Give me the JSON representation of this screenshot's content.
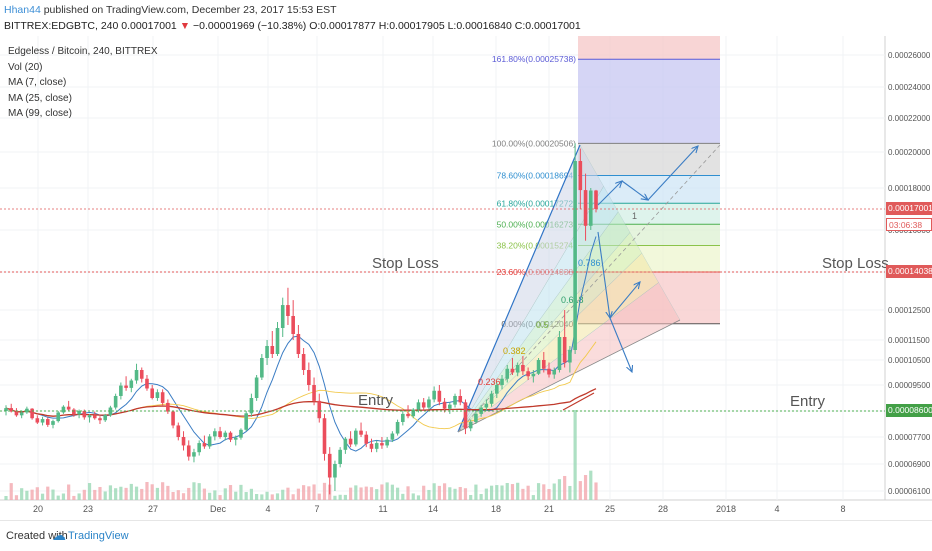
{
  "header": {
    "author": "Hhan44",
    "published_text": "published on TradingView.com, December 23, 2017 15:53 EST",
    "symbol": "BITTREX:EDGBTC, 240",
    "price": "0.00017001",
    "change_arrow": "▼",
    "change": "−0.00001969 (−10.38%)",
    "ohlc": "O:0.00017877 H:0.00017905 L:0.00016840 C:0.00017001"
  },
  "legend": {
    "title": "Edgeless / Bitcoin, 240, BITTREX",
    "vol": "Vol (20)",
    "ma7": "MA (7, close)",
    "ma25": "MA (25, close)",
    "ma99": "MA (99, close)"
  },
  "annotations": {
    "stop_loss_left": "Stop Loss",
    "stop_loss_right": "Stop Loss",
    "entry_left": "Entry",
    "entry_right": "Entry"
  },
  "price_labels": {
    "last": "0.00017001",
    "countdown": "03:06:38",
    "stop_loss": "0.00014038",
    "entry": "0.00008600"
  },
  "footer": {
    "created_with": "Created with",
    "brand": "TradingView"
  },
  "colors": {
    "up": "#53b987",
    "down": "#eb4d5c",
    "ma7": "#3b7dc4",
    "ma25": "#f2c94c",
    "ma99": "#c0392b",
    "stop_line": "#e05a5a",
    "entry_line": "#4caf50"
  },
  "chart_data": {
    "type": "candlestick",
    "symbol": "EDGBTC",
    "timeframe": "240",
    "x_tick_labels": [
      "20",
      "23",
      "27",
      "Dec",
      "4",
      "7",
      "11",
      "14",
      "18",
      "21",
      "25",
      "28",
      "2018",
      "4",
      "8"
    ],
    "y_tick_labels": [
      "0.00026000",
      "0.00024000",
      "0.00022000",
      "0.00020000",
      "0.00018000",
      "0.00016000",
      "0.00014038",
      "0.00012500",
      "0.00011500",
      "0.00010500",
      "0.00009500",
      "0.00008600",
      "0.00007700",
      "0.00006900",
      "0.00006100"
    ],
    "y_ticks": [
      0.00026,
      0.00024,
      0.00022,
      0.0002,
      0.00018,
      0.00016,
      0.00014038,
      0.000125,
      0.000115,
      0.000105,
      9.5e-05,
      8.6e-05,
      7.7e-05,
      6.9e-05,
      6.1e-05
    ],
    "fib_levels": [
      {
        "label": "161.80%(0.00025738)",
        "value": 0.00025738,
        "color": "#5b5bd6"
      },
      {
        "label": "100.00%(0.00020506)",
        "value": 0.00020506,
        "color": "#808080"
      },
      {
        "label": "78.60%(0.00018694)",
        "value": 0.00018694,
        "color": "#2f8fd0"
      },
      {
        "label": "61.80%(0.00017272)",
        "value": 0.00017272,
        "color": "#26a69a"
      },
      {
        "label": "50.00%(0.00016273)",
        "value": 0.00016273,
        "color": "#4caf50"
      },
      {
        "label": "38.20%(0.00015274)",
        "value": 0.00015274,
        "color": "#8bc34a"
      },
      {
        "label": "23.60%(0.00014038)",
        "value": 0.00014038,
        "color": "#e53935"
      },
      {
        "label": "0.00%(0.00012040)",
        "value": 0.0001204,
        "color": "#555555"
      }
    ],
    "fan_labels": [
      "0.236",
      "0.382",
      "0.5",
      "0.618",
      "0.786",
      "1"
    ],
    "horizontal_lines": [
      {
        "name": "Stop Loss",
        "value": 0.00014038
      },
      {
        "name": "Entry",
        "value": 8.6e-05
      },
      {
        "name": "Last",
        "value": 0.00017001
      }
    ],
    "candles": [
      [
        8.6e-05,
        8.8e-05,
        8.45e-05,
        8.7e-05
      ],
      [
        8.7e-05,
        8.85e-05,
        8.55e-05,
        8.58e-05
      ],
      [
        8.58e-05,
        8.7e-05,
        8.4e-05,
        8.45e-05
      ],
      [
        8.45e-05,
        8.62e-05,
        8.35e-05,
        8.55e-05
      ],
      [
        8.55e-05,
        8.75e-05,
        8.5e-05,
        8.68e-05
      ],
      [
        8.68e-05,
        8.7e-05,
        8.3e-05,
        8.35e-05
      ],
      [
        8.35e-05,
        8.45e-05,
        8.15e-05,
        8.2e-05
      ],
      [
        8.2e-05,
        8.4e-05,
        8.1e-05,
        8.32e-05
      ],
      [
        8.32e-05,
        8.38e-05,
        8.05e-05,
        8.12e-05
      ],
      [
        8.12e-05,
        8.3e-05,
        8e-05,
        8.25e-05
      ],
      [
        8.25e-05,
        8.6e-05,
        8.2e-05,
        8.55e-05
      ],
      [
        8.55e-05,
        8.8e-05,
        8.5e-05,
        8.75e-05
      ],
      [
        8.75e-05,
        8.95e-05,
        8.6e-05,
        8.65e-05
      ],
      [
        8.65e-05,
        8.7e-05,
        8.4e-05,
        8.48e-05
      ],
      [
        8.48e-05,
        8.65e-05,
        8.35e-05,
        8.6e-05
      ],
      [
        8.6e-05,
        8.65e-05,
        8.3e-05,
        8.38e-05
      ],
      [
        8.38e-05,
        8.5e-05,
        8.2e-05,
        8.45e-05
      ],
      [
        8.45e-05,
        8.58e-05,
        8.3e-05,
        8.35e-05
      ],
      [
        8.35e-05,
        8.42e-05,
        8.15e-05,
        8.28e-05
      ],
      [
        8.28e-05,
        8.5e-05,
        8.22e-05,
        8.46e-05
      ],
      [
        8.46e-05,
        8.78e-05,
        8.4e-05,
        8.72e-05
      ],
      [
        8.72e-05,
        9.2e-05,
        8.65e-05,
        9.12e-05
      ],
      [
        9.12e-05,
        9.6e-05,
        9e-05,
        9.48e-05
      ],
      [
        9.48e-05,
        9.85e-05,
        9.3e-05,
        9.4e-05
      ],
      [
        9.4e-05,
        9.75e-05,
        9.25e-05,
        9.68e-05
      ],
      [
        9.68e-05,
        0.0001035,
        9.55e-05,
        0.000101
      ],
      [
        0.000101,
        0.000102,
        9.6e-05,
        9.75e-05
      ],
      [
        9.75e-05,
        9.9e-05,
        9.3e-05,
        9.38e-05
      ],
      [
        9.38e-05,
        9.5e-05,
        9e-05,
        9.05e-05
      ],
      [
        9.05e-05,
        9.35e-05,
        8.95e-05,
        9.25e-05
      ],
      [
        9.25e-05,
        9.35e-05,
        8.8e-05,
        8.88e-05
      ],
      [
        8.88e-05,
        9e-05,
        8.5e-05,
        8.58e-05
      ],
      [
        8.58e-05,
        8.62e-05,
        8e-05,
        8.1e-05
      ],
      [
        8.1e-05,
        8.2e-05,
        7.6e-05,
        7.7e-05
      ],
      [
        7.7e-05,
        7.9e-05,
        7.3e-05,
        7.45e-05
      ],
      [
        7.45e-05,
        7.6e-05,
        7e-05,
        7.12e-05
      ],
      [
        7.12e-05,
        7.35e-05,
        6.95e-05,
        7.25e-05
      ],
      [
        7.25e-05,
        7.6e-05,
        7.15e-05,
        7.52e-05
      ],
      [
        7.52e-05,
        7.75e-05,
        7.35e-05,
        7.42e-05
      ],
      [
        7.42e-05,
        7.8e-05,
        7.35e-05,
        7.72e-05
      ],
      [
        7.72e-05,
        8e-05,
        7.6e-05,
        7.9e-05
      ],
      [
        7.9e-05,
        8.05e-05,
        7.65e-05,
        7.7e-05
      ],
      [
        7.7e-05,
        7.92e-05,
        7.6e-05,
        7.85e-05
      ],
      [
        7.85e-05,
        7.9e-05,
        7.55e-05,
        7.62e-05
      ],
      [
        7.62e-05,
        7.75e-05,
        7.45e-05,
        7.68e-05
      ],
      [
        7.68e-05,
        8e-05,
        7.62e-05,
        7.95e-05
      ],
      [
        7.95e-05,
        8.6e-05,
        7.9e-05,
        8.52e-05
      ],
      [
        8.52e-05,
        9.2e-05,
        8.4e-05,
        9.05e-05
      ],
      [
        9.05e-05,
        9.9e-05,
        8.95e-05,
        9.8e-05
      ],
      [
        9.8e-05,
        0.000108,
        9.7e-05,
        0.000106
      ],
      [
        0.000106,
        0.000115,
        0.000103,
        0.000112
      ],
      [
        0.000112,
        0.000118,
        0.000106,
        0.000108
      ],
      [
        0.000108,
        0.000121,
        0.000107,
        0.000119
      ],
      [
        0.000119,
        0.00013,
        0.000116,
        0.000127
      ],
      [
        0.000127,
        0.000134,
        0.00012,
        0.000123
      ],
      [
        0.000123,
        0.000129,
        0.000115,
        0.000117
      ],
      [
        0.000117,
        0.00012,
        0.000106,
        0.000108
      ],
      [
        0.000108,
        0.000111,
        9.9e-05,
        0.000101
      ],
      [
        0.000101,
        0.000104,
        9.3e-05,
        9.5e-05
      ],
      [
        9.5e-05,
        9.8e-05,
        8.8e-05,
        8.95e-05
      ],
      [
        8.95e-05,
        9.2e-05,
        8.2e-05,
        8.35e-05
      ],
      [
        8.35e-05,
        8.5e-05,
        7e-05,
        7.2e-05
      ],
      [
        7.2e-05,
        7.4e-05,
        6e-05,
        6.5e-05
      ],
      [
        6.5e-05,
        7e-05,
        6.1e-05,
        6.9e-05
      ],
      [
        6.9e-05,
        7.4e-05,
        6.8e-05,
        7.32e-05
      ],
      [
        7.32e-05,
        7.7e-05,
        7.2e-05,
        7.65e-05
      ],
      [
        7.65e-05,
        7.9e-05,
        7.4e-05,
        7.48e-05
      ],
      [
        7.48e-05,
        8e-05,
        7.42e-05,
        7.92e-05
      ],
      [
        7.92e-05,
        8.2e-05,
        7.7e-05,
        7.78e-05
      ],
      [
        7.78e-05,
        7.9e-05,
        7.4e-05,
        7.5e-05
      ],
      [
        7.5e-05,
        7.65e-05,
        7.25e-05,
        7.35e-05
      ],
      [
        7.35e-05,
        7.6e-05,
        7.25e-05,
        7.52e-05
      ],
      [
        7.52e-05,
        7.7e-05,
        7.35e-05,
        7.45e-05
      ],
      [
        7.45e-05,
        7.7e-05,
        7.38e-05,
        7.62e-05
      ],
      [
        7.62e-05,
        7.9e-05,
        7.55e-05,
        7.82e-05
      ],
      [
        7.82e-05,
        8.3e-05,
        7.75e-05,
        8.22e-05
      ],
      [
        8.22e-05,
        8.6e-05,
        8.1e-05,
        8.5e-05
      ],
      [
        8.5e-05,
        8.8e-05,
        8.35e-05,
        8.42e-05
      ],
      [
        8.42e-05,
        8.7e-05,
        8.35e-05,
        8.65e-05
      ],
      [
        8.65e-05,
        9e-05,
        8.55e-05,
        8.9e-05
      ],
      [
        8.9e-05,
        9.05e-05,
        8.6e-05,
        8.72e-05
      ],
      [
        8.72e-05,
        9.1e-05,
        8.65e-05,
        9e-05
      ],
      [
        9e-05,
        9.45e-05,
        8.9e-05,
        9.3e-05
      ],
      [
        9.3e-05,
        9.5e-05,
        8.8e-05,
        8.92e-05
      ],
      [
        8.92e-05,
        9.05e-05,
        8.55e-05,
        8.68e-05
      ],
      [
        8.68e-05,
        8.9e-05,
        8.5e-05,
        8.82e-05
      ],
      [
        8.82e-05,
        9.2e-05,
        8.72e-05,
        9.12e-05
      ],
      [
        9.12e-05,
        9.35e-05,
        8.8e-05,
        8.9e-05
      ],
      [
        8.9e-05,
        9e-05,
        7.8e-05,
        8e-05
      ],
      [
        8e-05,
        8.3e-05,
        7.9e-05,
        8.22e-05
      ],
      [
        8.22e-05,
        8.6e-05,
        8.15e-05,
        8.5e-05
      ],
      [
        8.5e-05,
        8.8e-05,
        8.4e-05,
        8.72e-05
      ],
      [
        8.72e-05,
        9e-05,
        8.6e-05,
        8.85e-05
      ],
      [
        8.85e-05,
        9.3e-05,
        8.75e-05,
        9.2e-05
      ],
      [
        9.2e-05,
        9.6e-05,
        9.05e-05,
        9.5e-05
      ],
      [
        9.5e-05,
        9.9e-05,
        9.35e-05,
        9.75e-05
      ],
      [
        9.75e-05,
        0.000103,
        9.6e-05,
        0.0001015
      ],
      [
        0.0001015,
        0.000106,
        9.9e-05,
        0.0001
      ],
      [
        0.0001,
        0.000104,
        9.85e-05,
        0.000103
      ],
      [
        0.000103,
        0.000107,
        9.9e-05,
        0.0001005
      ],
      [
        0.0001005,
        0.000102,
        9.7e-05,
        9.85e-05
      ],
      [
        9.85e-05,
        0.000101,
        9.6e-05,
        9.95e-05
      ],
      [
        9.95e-05,
        0.000106,
        9.9e-05,
        0.000105
      ],
      [
        0.000105,
        0.000109,
        0.0001,
        0.0001015
      ],
      [
        0.0001015,
        0.000104,
        9.8e-05,
        9.92e-05
      ],
      [
        9.92e-05,
        0.000102,
        9.75e-05,
        0.000101
      ],
      [
        0.000101,
        0.000118,
        0.0001,
        0.000116
      ],
      [
        0.000116,
        0.000125,
        0.000102,
        0.000104
      ],
      [
        0.000104,
        0.000112,
        0.0001,
        0.00011
      ],
      [
        0.00011,
        0.0002051,
        0.000108,
        0.000195
      ],
      [
        0.000195,
        0.000202,
        0.00017,
        0.000179
      ],
      [
        0.000179,
        0.000188,
        0.000155,
        0.000162
      ],
      [
        0.000162,
        0.00018,
        0.00016,
        0.0001788
      ],
      [
        0.0001788,
        0.0001791,
        0.0001684,
        0.00017
      ]
    ]
  }
}
